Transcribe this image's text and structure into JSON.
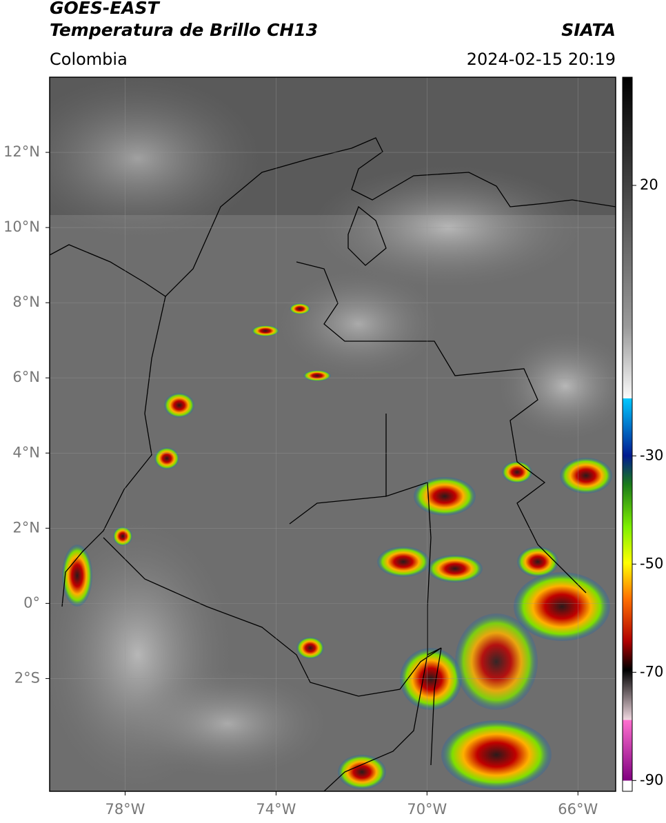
{
  "header": {
    "source": "GOES-EAST",
    "title": "Temperatura de Brillo CH13",
    "region": "Colombia",
    "agency": "SIATA",
    "datetime": "2024-02-15 20:19"
  },
  "map": {
    "xlim": [
      -80,
      -65
    ],
    "ylim": [
      -5,
      14
    ],
    "xticks": [
      {
        "value": -78,
        "label": "78°W"
      },
      {
        "value": -74,
        "label": "74°W"
      },
      {
        "value": -70,
        "label": "70°W"
      },
      {
        "value": -66,
        "label": "66°W"
      }
    ],
    "yticks": [
      {
        "value": 12,
        "label": "12°N"
      },
      {
        "value": 10,
        "label": "10°N"
      },
      {
        "value": 8,
        "label": "8°N"
      },
      {
        "value": 6,
        "label": "6°N"
      },
      {
        "value": 4,
        "label": "4°N"
      },
      {
        "value": 2,
        "label": "2°N"
      },
      {
        "value": 0,
        "label": "0°"
      },
      {
        "value": -2,
        "label": "2°S"
      }
    ],
    "grid": true
  },
  "colorbar": {
    "lim": [
      -92,
      40
    ],
    "ticks": [
      20,
      -30,
      -50,
      -70,
      -90
    ]
  }
}
